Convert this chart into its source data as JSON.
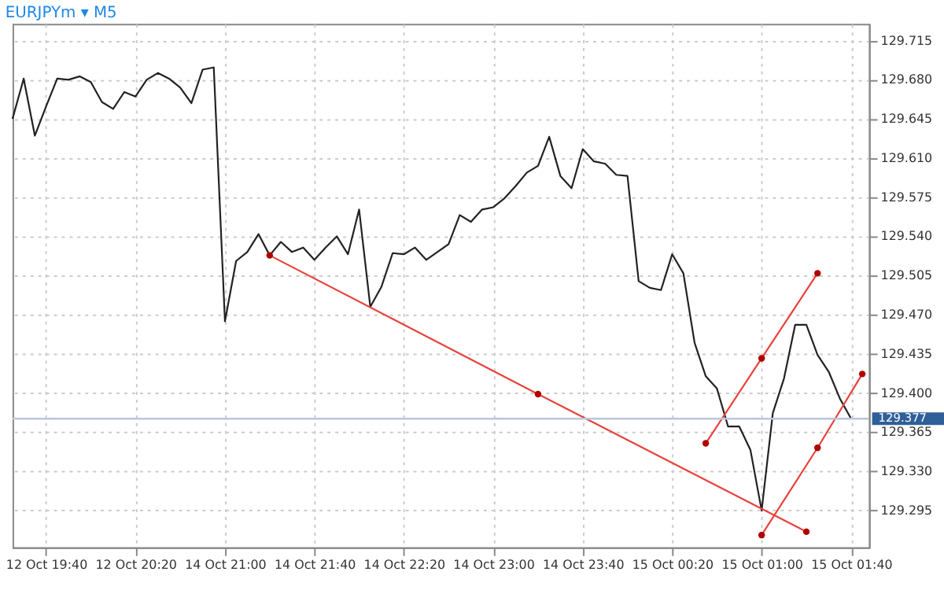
{
  "chart_data": {
    "type": "line",
    "title": "EURJPYm ▾ M5",
    "ylim": [
      129.262,
      129.73
    ],
    "categories": [
      null,
      null,
      null,
      "12 Oct 19:40",
      null,
      null,
      null,
      null,
      null,
      null,
      null,
      "12 Oct 20:20",
      null,
      null,
      null,
      null,
      null,
      null,
      null,
      "14 Oct 21:00",
      null,
      null,
      null,
      null,
      null,
      null,
      null,
      "14 Oct 21:40",
      null,
      null,
      null,
      null,
      null,
      null,
      null,
      "14 Oct 22:20",
      null,
      null,
      null,
      null,
      null,
      null,
      null,
      "14 Oct 23:00",
      null,
      null,
      null,
      null,
      null,
      null,
      null,
      "14 Oct 23:40",
      null,
      null,
      null,
      null,
      null,
      null,
      null,
      "15 Oct 00:20",
      null,
      null,
      null,
      null,
      null,
      null,
      null,
      "15 Oct 01:00",
      null,
      null,
      null,
      null,
      null,
      null,
      null,
      "15 Oct 01:40",
      null
    ],
    "yticks": [
      {
        "value": 129.295,
        "label": "129.295"
      },
      {
        "value": 129.33,
        "label": "129.330"
      },
      {
        "value": 129.365,
        "label": "129.365"
      },
      {
        "value": 129.4,
        "label": "129.400"
      },
      {
        "value": 129.435,
        "label": "129.435"
      },
      {
        "value": 129.47,
        "label": "129.470"
      },
      {
        "value": 129.505,
        "label": "129.505"
      },
      {
        "value": 129.54,
        "label": "129.540"
      },
      {
        "value": 129.575,
        "label": "129.575"
      },
      {
        "value": 129.61,
        "label": "129.610"
      },
      {
        "value": 129.645,
        "label": "129.645"
      },
      {
        "value": 129.68,
        "label": "129.680"
      },
      {
        "value": 129.715,
        "label": "129.715"
      }
    ],
    "grid": true,
    "line_style": "solid",
    "series": [
      {
        "color": "#222222",
        "marker": "none",
        "values": [
          129.645,
          129.681,
          129.63,
          129.656,
          129.681,
          129.68,
          129.683,
          129.678,
          129.66,
          129.654,
          129.669,
          129.665,
          129.68,
          129.686,
          129.681,
          129.673,
          129.659,
          129.689,
          129.691,
          129.464,
          129.518,
          129.526,
          129.542,
          129.523,
          129.535,
          129.526,
          129.53,
          129.519,
          129.53,
          129.54,
          129.524,
          129.564,
          129.477,
          129.495,
          129.525,
          129.524,
          129.53,
          129.519,
          129.526,
          129.533,
          129.559,
          129.553,
          129.564,
          129.566,
          129.574,
          129.585,
          129.597,
          129.603,
          129.629,
          129.594,
          129.583,
          129.618,
          129.607,
          129.605,
          129.595,
          129.594,
          129.5,
          129.494,
          129.492,
          129.524,
          129.507,
          129.445,
          129.415,
          129.404,
          129.37,
          129.37,
          129.349,
          129.295,
          129.382,
          129.413,
          129.461,
          129.461,
          129.434,
          129.419,
          129.395,
          129.377,
          null
        ]
      },
      {
        "color": "#e8413c",
        "marker": "circle",
        "values": [
          null,
          null,
          null,
          null,
          null,
          null,
          null,
          null,
          null,
          null,
          null,
          null,
          null,
          null,
          null,
          null,
          null,
          null,
          null,
          null,
          null,
          null,
          null,
          129.523,
          null,
          null,
          null,
          null,
          null,
          null,
          null,
          null,
          null,
          null,
          null,
          null,
          null,
          null,
          null,
          null,
          null,
          null,
          null,
          null,
          null,
          null,
          null,
          129.399,
          null,
          null,
          null,
          null,
          null,
          null,
          null,
          null,
          null,
          null,
          null,
          null,
          null,
          null,
          null,
          null,
          null,
          null,
          null,
          null,
          null,
          null,
          null,
          129.276,
          null,
          null,
          null,
          null,
          null
        ]
      },
      {
        "color": "#e8413c",
        "marker": "circle",
        "values": [
          null,
          null,
          null,
          null,
          null,
          null,
          null,
          null,
          null,
          null,
          null,
          null,
          null,
          null,
          null,
          null,
          null,
          null,
          null,
          null,
          null,
          null,
          null,
          null,
          null,
          null,
          null,
          null,
          null,
          null,
          null,
          null,
          null,
          null,
          null,
          null,
          null,
          null,
          null,
          null,
          null,
          null,
          null,
          null,
          null,
          null,
          null,
          null,
          null,
          null,
          null,
          null,
          null,
          null,
          null,
          null,
          null,
          null,
          null,
          null,
          null,
          null,
          129.355,
          null,
          null,
          null,
          null,
          129.431,
          null,
          null,
          null,
          null,
          129.507,
          null,
          null,
          null,
          null
        ]
      },
      {
        "color": "#e8413c",
        "marker": "circle",
        "values": [
          null,
          null,
          null,
          null,
          null,
          null,
          null,
          null,
          null,
          null,
          null,
          null,
          null,
          null,
          null,
          null,
          null,
          null,
          null,
          null,
          null,
          null,
          null,
          null,
          null,
          null,
          null,
          null,
          null,
          null,
          null,
          null,
          null,
          null,
          null,
          null,
          null,
          null,
          null,
          null,
          null,
          null,
          null,
          null,
          null,
          null,
          null,
          null,
          null,
          null,
          null,
          null,
          null,
          null,
          null,
          null,
          null,
          null,
          null,
          null,
          null,
          null,
          null,
          null,
          null,
          null,
          null,
          129.273,
          null,
          null,
          null,
          null,
          129.351,
          null,
          null,
          null,
          129.417
        ]
      }
    ],
    "ref_lines": [
      {
        "axis": "y",
        "value": 129.377,
        "label": "129.377",
        "color": "#b8c8dc"
      }
    ]
  }
}
